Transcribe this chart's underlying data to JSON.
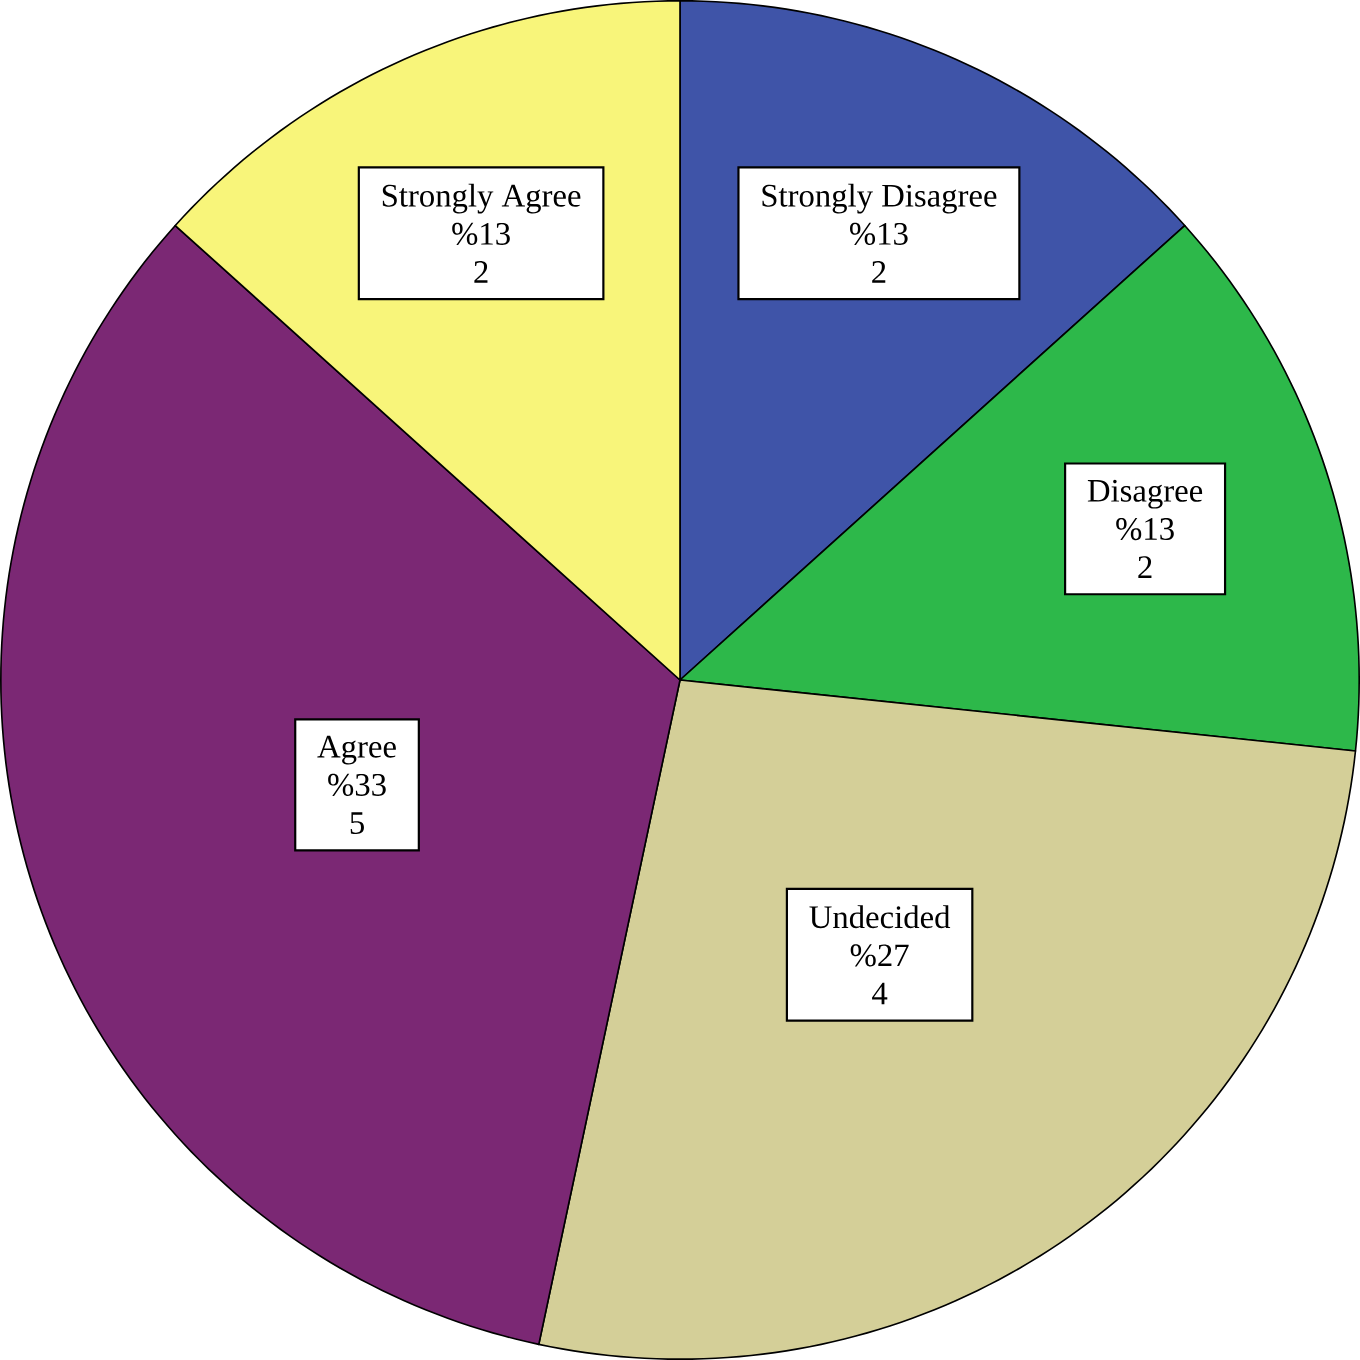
{
  "chart_data": {
    "type": "pie",
    "categories": [
      "Strongly Disagree",
      "Disagree",
      "Undecided",
      "Agree",
      "Strongly Agree"
    ],
    "values": [
      2,
      2,
      4,
      5,
      2
    ],
    "annotations": [
      "%13",
      "%13",
      "%27",
      "%33",
      "%13"
    ],
    "data_labels": true,
    "colors": [
      "#3f54a8",
      "#2db84a",
      "#d4cf98",
      "#7b2874",
      "#f8f57a"
    ]
  }
}
